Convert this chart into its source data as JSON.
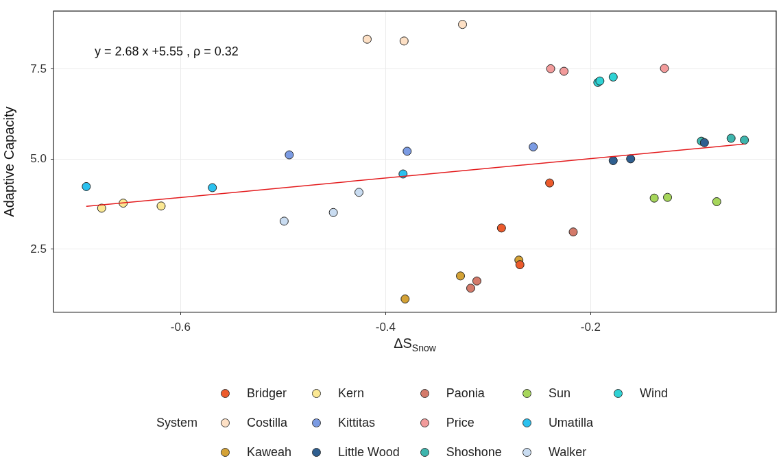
{
  "chart_data": {
    "type": "scatter",
    "xlabel": "ΔS$_{Snow}$",
    "ylabel": "Adaptive Capacity",
    "legend_title": "System",
    "xlim": [
      -0.724,
      -0.019
    ],
    "ylim": [
      0.75,
      9.11
    ],
    "xticks": [
      -0.6,
      -0.4,
      -0.2
    ],
    "yticks": [
      2.5,
      {
        "value": 5,
        "label": "5.0"
      },
      7.5
    ],
    "grid": true,
    "legend": "bottom",
    "marker": "circle",
    "annotations": [
      "y = 2.68 x +5.55 , ρ = 0.32"
    ],
    "series": [
      {
        "name": "Bridger",
        "color": "#ec5a2b",
        "x": [
          -0.24,
          -0.287,
          -0.269
        ],
        "values": [
          4.34,
          3.09,
          2.07
        ]
      },
      {
        "name": "Costilla",
        "color": "#fde0c5",
        "x": [
          -0.418,
          -0.382,
          -0.325
        ],
        "values": [
          8.33,
          8.28,
          8.74
        ]
      },
      {
        "name": "Kaweah",
        "color": "#d4a236",
        "x": [
          -0.381,
          -0.27,
          -0.327
        ],
        "values": [
          1.12,
          2.2,
          1.76
        ]
      },
      {
        "name": "Kern",
        "color": "#fbe893",
        "x": [
          -0.677,
          -0.656,
          -0.619
        ],
        "values": [
          3.64,
          3.78,
          3.7
        ]
      },
      {
        "name": "Kittitas",
        "color": "#7b9be3",
        "x": [
          -0.494,
          -0.379,
          -0.256
        ],
        "values": [
          5.12,
          5.22,
          5.34
        ]
      },
      {
        "name": "Little Wood",
        "color": "#2f5f90",
        "x": [
          -0.178,
          -0.161,
          -0.089
        ],
        "values": [
          4.96,
          5.01,
          5.46
        ]
      },
      {
        "name": "Paonia",
        "color": "#d47a6a",
        "x": [
          -0.217,
          -0.311,
          -0.317
        ],
        "values": [
          2.98,
          1.62,
          1.42
        ]
      },
      {
        "name": "Price",
        "color": "#f29b9b",
        "x": [
          -0.239,
          -0.226,
          -0.128
        ],
        "values": [
          7.51,
          7.44,
          7.52
        ]
      },
      {
        "name": "Shoshone",
        "color": "#3db5ad",
        "x": [
          -0.092,
          -0.063,
          -0.05
        ],
        "values": [
          5.5,
          5.58,
          5.53
        ]
      },
      {
        "name": "Sun",
        "color": "#a6d65b",
        "x": [
          -0.138,
          -0.125,
          -0.077
        ],
        "values": [
          3.92,
          3.94,
          3.82
        ]
      },
      {
        "name": "Umatilla",
        "color": "#2bc1ef",
        "x": [
          -0.692,
          -0.569,
          -0.383
        ],
        "values": [
          4.24,
          4.21,
          4.59
        ]
      },
      {
        "name": "Walker",
        "color": "#c9dcf1",
        "x": [
          -0.499,
          -0.451,
          -0.426
        ],
        "values": [
          3.28,
          3.52,
          4.08
        ]
      },
      {
        "name": "Wind",
        "color": "#2fd2d4",
        "x": [
          -0.193,
          -0.191,
          -0.178
        ],
        "values": [
          7.13,
          7.17,
          7.28
        ]
      },
      {
        "type": "line",
        "marker": "none",
        "color": "#e31a1c",
        "x": [
          -0.692,
          -0.05
        ],
        "values": [
          3.69,
          5.42
        ]
      }
    ]
  }
}
